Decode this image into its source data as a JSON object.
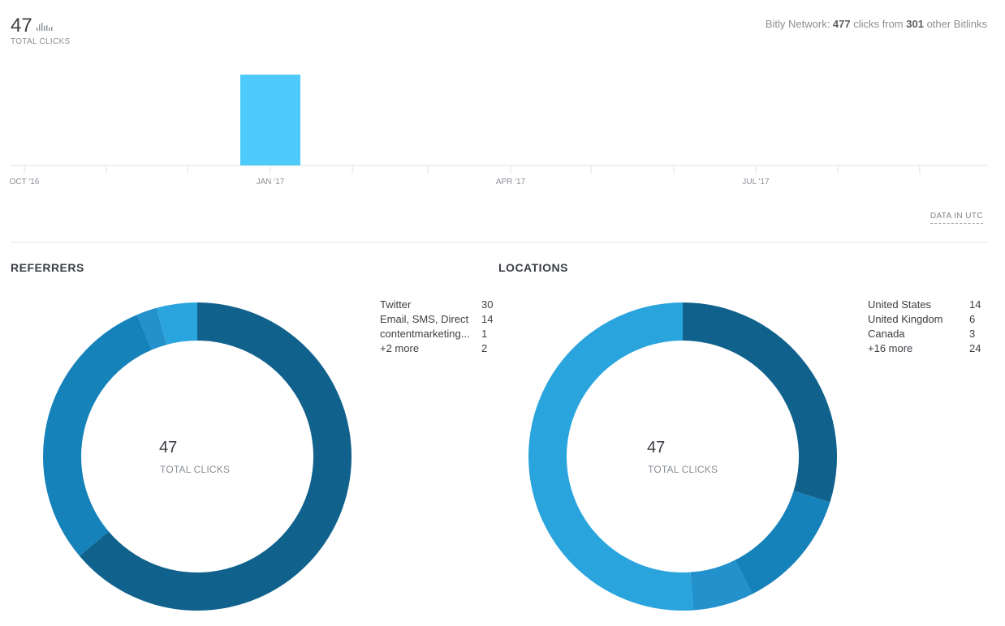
{
  "summary": {
    "total_clicks": "47",
    "total_clicks_label": "TOTAL CLICKS",
    "network_prefix": "Bitly Network: ",
    "network_clicks": "477",
    "network_mid": " clicks from ",
    "network_bitlinks": "301",
    "network_suffix": " other Bitlinks"
  },
  "utc_label": "DATA IN UTC",
  "chart_data": [
    {
      "type": "bar",
      "title": "",
      "x_tick_labels": [
        "OCT '16",
        "JAN '17",
        "APR '17",
        "JUL '17"
      ],
      "categories": [
        "Jan '17"
      ],
      "values": [
        47
      ],
      "color": "#4ecbfb"
    },
    {
      "type": "pie",
      "title": "REFERRERS",
      "center_value": "47",
      "center_label": "TOTAL CLICKS",
      "labels": [
        "Twitter",
        "Email, SMS, Direct",
        "contentmarketing...",
        "+2 more"
      ],
      "values": [
        30,
        14,
        1,
        2
      ],
      "colors": [
        "#10628c",
        "#1682ba",
        "#2391cc",
        "#2aa4dd"
      ]
    },
    {
      "type": "pie",
      "title": "LOCATIONS",
      "center_value": "47",
      "center_label": "TOTAL CLICKS",
      "labels": [
        "United States",
        "United Kingdom",
        "Canada",
        "+16 more"
      ],
      "values": [
        14,
        6,
        3,
        24
      ],
      "colors": [
        "#10628c",
        "#1682ba",
        "#2391cc",
        "#2aa4dd"
      ]
    }
  ]
}
